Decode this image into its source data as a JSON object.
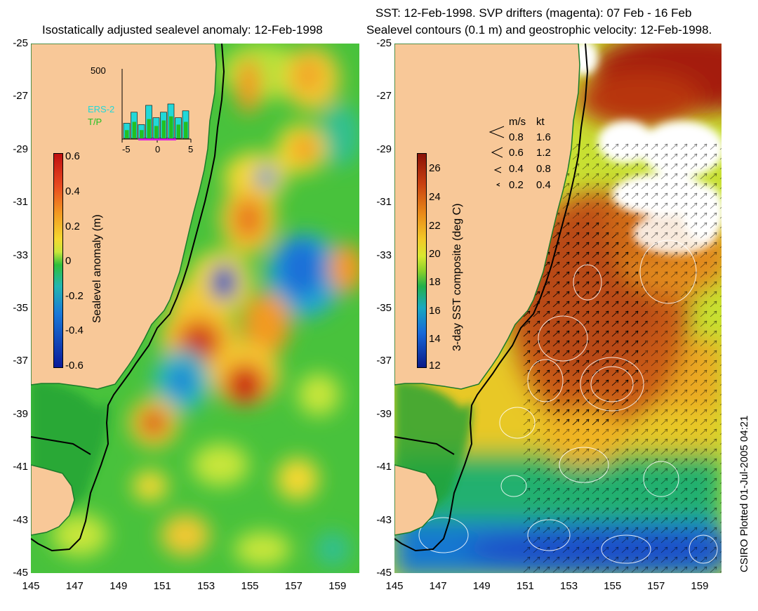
{
  "left_panel": {
    "title": "Isostatically adjusted sealevel anomaly: 12-Feb-1998",
    "colorbar": {
      "label": "Sealevel anomaly (m)",
      "ticks": [
        "0.6",
        "0.4",
        "0.2",
        "0",
        "-0.2",
        "-0.4",
        "-0.6"
      ],
      "colors": [
        "#c01010",
        "#e84a20",
        "#f29a22",
        "#f5d830",
        "#c8e63a",
        "#2fbf3a",
        "#22b6b0",
        "#1a78d8",
        "#0a1a9a"
      ]
    },
    "inset": {
      "ymax_label": "500",
      "legend": [
        "ERS-2",
        "T/P"
      ],
      "xticks": [
        "-5",
        "0",
        "5"
      ],
      "bars_ers": [
        0.22,
        0.38,
        0.2,
        0.48,
        0.3,
        0.38,
        0.5,
        0.3,
        0.4
      ],
      "bars_tp": [
        0.12,
        0.24,
        0.12,
        0.28,
        0.18,
        0.26,
        0.32,
        0.2,
        0.24
      ],
      "colors": {
        "ers": "#22d8d8",
        "tp": "#22c022",
        "marker": "#e020e0"
      }
    }
  },
  "right_panel": {
    "title_line1": "SST: 12-Feb-1998. SVP drifters (magenta): 07 Feb - 16 Feb",
    "title_line2": "Sealevel contours (0.1 m) and geostrophic velocity: 12-Feb-1998.",
    "colorbar": {
      "label": "3-day SST composite (deg C)",
      "ticks": [
        "26",
        "24",
        "22",
        "20",
        "18",
        "16",
        "14",
        "12"
      ],
      "colors": [
        "#8a1208",
        "#c84010",
        "#e98a18",
        "#f2c828",
        "#d8e830",
        "#8ad02a",
        "#22b04a",
        "#18a8c0",
        "#1868d8",
        "#0a1a88"
      ]
    },
    "velocity_legend": {
      "header_ms": "m/s",
      "header_kt": "kt",
      "rows": [
        {
          "ms": "0.8",
          "kt": "1.6"
        },
        {
          "ms": "0.6",
          "kt": "1.2"
        },
        {
          "ms": "0.4",
          "kt": "0.8"
        },
        {
          "ms": "0.2",
          "kt": "0.4"
        }
      ]
    }
  },
  "axes": {
    "y_ticks": [
      "-25",
      "-27",
      "-29",
      "-31",
      "-33",
      "-35",
      "-37",
      "-39",
      "-41",
      "-43",
      "-45"
    ],
    "x_ticks": [
      "145",
      "147",
      "149",
      "151",
      "153",
      "155",
      "157",
      "159"
    ],
    "lat_range": [
      -45,
      -25
    ],
    "lon_range": [
      145,
      160
    ]
  },
  "colors": {
    "land": "#f8c898",
    "ocean_base": "#4cc23a",
    "coast": "#000000"
  },
  "credit": "CSIRO Plotted 01-Jul-2005 04:21"
}
